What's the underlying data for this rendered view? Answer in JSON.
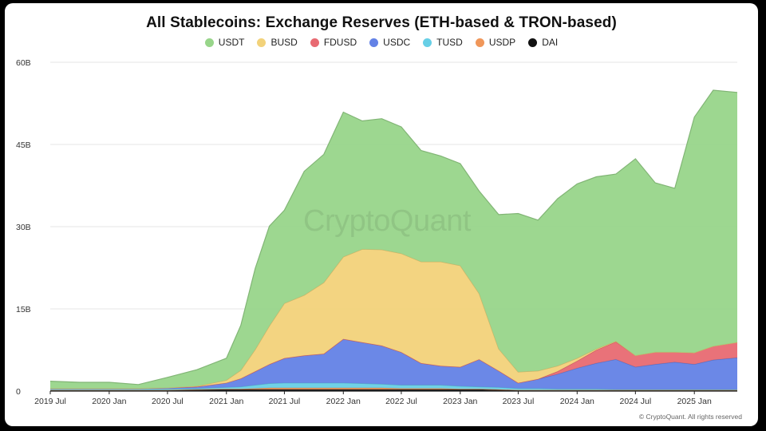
{
  "chart_data": {
    "type": "area",
    "stacked": true,
    "title": "All Stablecoins: Exchange Reserves (ETH-based & TRON-based)",
    "y_ticks": [
      "60B",
      "45B",
      "30B",
      "15B",
      "0"
    ],
    "ylim": [
      0,
      60
    ],
    "y_unit": "billions",
    "x_ticks": [
      "2019 Jul",
      "2020 Jan",
      "2020 Jul",
      "2021 Jan",
      "2021 Jul",
      "2022 Jan",
      "2022 Jul",
      "2023 Jan",
      "2023 Jul",
      "2024 Jan",
      "2024 Jul",
      "2025 Jan"
    ],
    "xlim": [
      "2019-07-01",
      "2025-05-15"
    ],
    "grid": "horizontal",
    "legend_placement": "top-center",
    "x": [
      "2019-07-01",
      "2019-10-01",
      "2020-01-01",
      "2020-04-01",
      "2020-07-01",
      "2020-10-01",
      "2021-01-01",
      "2021-02-15",
      "2021-04-01",
      "2021-05-15",
      "2021-07-01",
      "2021-09-01",
      "2021-11-01",
      "2022-01-01",
      "2022-03-01",
      "2022-05-01",
      "2022-07-01",
      "2022-09-01",
      "2022-11-01",
      "2023-01-01",
      "2023-03-01",
      "2023-05-01",
      "2023-07-01",
      "2023-09-01",
      "2023-11-01",
      "2024-01-01",
      "2024-03-01",
      "2024-05-01",
      "2024-07-01",
      "2024-09-01",
      "2024-11-01",
      "2025-01-01",
      "2025-03-01",
      "2025-05-15"
    ],
    "series": [
      {
        "name": "DAI",
        "color": "#111111",
        "values": [
          0.2,
          0.2,
          0.2,
          0.2,
          0.2,
          0.3,
          0.3,
          0.3,
          0.3,
          0.3,
          0.3,
          0.3,
          0.3,
          0.3,
          0.3,
          0.3,
          0.3,
          0.3,
          0.3,
          0.3,
          0.3,
          0.2,
          0.2,
          0.2,
          0.2,
          0.2,
          0.2,
          0.2,
          0.2,
          0.2,
          0.2,
          0.2,
          0.2,
          0.2
        ]
      },
      {
        "name": "USDP",
        "color": "#f0975a",
        "values": [
          0,
          0,
          0,
          0,
          0,
          0,
          0.1,
          0.1,
          0.2,
          0.3,
          0.3,
          0.3,
          0.3,
          0.3,
          0.3,
          0.3,
          0.2,
          0.2,
          0.2,
          0.1,
          0.1,
          0.1,
          0,
          0,
          0,
          0,
          0,
          0,
          0,
          0,
          0,
          0,
          0,
          0
        ]
      },
      {
        "name": "TUSD",
        "color": "#67cfe6",
        "values": [
          0.2,
          0.2,
          0.2,
          0.2,
          0.2,
          0.2,
          0.3,
          0.4,
          0.6,
          0.8,
          0.9,
          0.9,
          0.9,
          0.9,
          0.8,
          0.7,
          0.6,
          0.6,
          0.6,
          0.5,
          0.4,
          0.4,
          0.3,
          0.3,
          0.2,
          0.2,
          0.2,
          0.1,
          0.1,
          0.1,
          0.1,
          0.1,
          0.1,
          0.1
        ]
      },
      {
        "name": "USDC",
        "color": "#6382e6",
        "values": [
          0.1,
          0.1,
          0.1,
          0.1,
          0.2,
          0.3,
          0.8,
          1.5,
          2.5,
          3.5,
          4.5,
          5,
          5.3,
          8,
          7.5,
          7,
          6,
          4,
          3.5,
          3.5,
          5,
          3,
          1,
          1.7,
          2.7,
          3.8,
          4.7,
          5.5,
          4.1,
          4.6,
          5.0,
          4.6,
          5.4,
          5.8
        ]
      },
      {
        "name": "FDUSD",
        "color": "#e86a72",
        "values": [
          0,
          0,
          0,
          0,
          0,
          0,
          0,
          0,
          0,
          0,
          0,
          0,
          0,
          0,
          0,
          0,
          0,
          0,
          0,
          0,
          0,
          0,
          0,
          0,
          0.5,
          1.3,
          2.4,
          3.2,
          2.1,
          2.2,
          1.8,
          2.1,
          2.5,
          2.8
        ]
      },
      {
        "name": "BUSD",
        "color": "#f2d27a",
        "values": [
          0,
          0,
          0,
          0,
          0,
          0.1,
          0.5,
          1.5,
          4,
          7,
          10,
          11,
          13,
          15,
          17,
          17.5,
          18,
          18.5,
          19,
          18.5,
          12,
          4,
          2,
          1.5,
          1,
          0.5,
          0.2,
          0.1,
          0,
          0,
          0,
          0,
          0,
          0
        ]
      },
      {
        "name": "USDT",
        "color": "#98d58a",
        "values": [
          1.3,
          1.1,
          1.1,
          0.7,
          1.9,
          3.0,
          4.0,
          8.2,
          14.8,
          18.2,
          17.0,
          22.6,
          23.4,
          26.4,
          23.4,
          23.9,
          23.1,
          20.3,
          19.3,
          18.6,
          18.7,
          24.5,
          28.9,
          27.5,
          30.5,
          31.8,
          31.4,
          30.5,
          35.9,
          30.9,
          29.9,
          43.0,
          46.7,
          45.6
        ]
      }
    ]
  },
  "legend_order": [
    "USDT",
    "BUSD",
    "FDUSD",
    "USDC",
    "TUSD",
    "USDP",
    "DAI"
  ],
  "watermark": "CryptoQuant",
  "copyright": "© CryptoQuant. All rights reserved"
}
